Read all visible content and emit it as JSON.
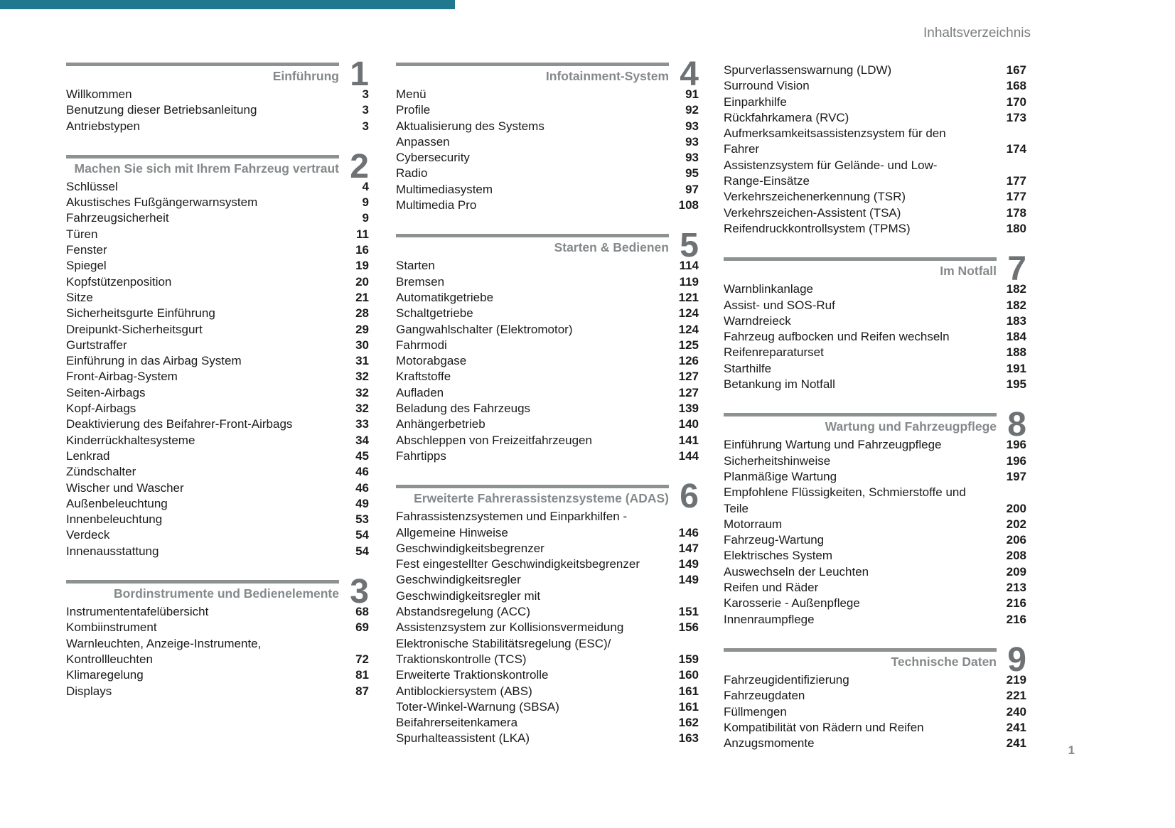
{
  "page": {
    "header_title": "Inhaltsverzeichnis",
    "footer_page_number": "1",
    "accent_color": "#20788f"
  },
  "columns": [
    [
      {
        "number": "1",
        "title": "Einführung",
        "items": [
          {
            "lines": [
              "Willkommen"
            ],
            "page": "3"
          },
          {
            "lines": [
              "Benutzung dieser Betriebsanleitung"
            ],
            "page": "3"
          },
          {
            "lines": [
              "Antriebstypen"
            ],
            "page": "3"
          }
        ]
      },
      {
        "number": "2",
        "title": "Machen Sie sich mit Ihrem Fahrzeug vertraut",
        "items": [
          {
            "lines": [
              "Schlüssel"
            ],
            "page": "4"
          },
          {
            "lines": [
              "Akustisches Fußgängerwarnsystem"
            ],
            "page": "9"
          },
          {
            "lines": [
              "Fahrzeugsicherheit"
            ],
            "page": "9"
          },
          {
            "lines": [
              "Türen"
            ],
            "page": "11"
          },
          {
            "lines": [
              "Fenster"
            ],
            "page": "16"
          },
          {
            "lines": [
              "Spiegel"
            ],
            "page": "19"
          },
          {
            "lines": [
              "Kopfstützenposition"
            ],
            "page": "20"
          },
          {
            "lines": [
              "Sitze"
            ],
            "page": "21"
          },
          {
            "lines": [
              "Sicherheitsgurte Einführung"
            ],
            "page": "28"
          },
          {
            "lines": [
              "Dreipunkt-Sicherheitsgurt"
            ],
            "page": "29"
          },
          {
            "lines": [
              "Gurtstraffer"
            ],
            "page": "30"
          },
          {
            "lines": [
              "Einführung in das Airbag System"
            ],
            "page": "31"
          },
          {
            "lines": [
              "Front-Airbag-System"
            ],
            "page": "32"
          },
          {
            "lines": [
              "Seiten-Airbags"
            ],
            "page": "32"
          },
          {
            "lines": [
              "Kopf-Airbags"
            ],
            "page": "32"
          },
          {
            "lines": [
              "Deaktivierung des Beifahrer-Front-Airbags"
            ],
            "page": "33"
          },
          {
            "lines": [
              "Kinderrückhaltesysteme"
            ],
            "page": "34"
          },
          {
            "lines": [
              "Lenkrad"
            ],
            "page": "45"
          },
          {
            "lines": [
              "Zündschalter"
            ],
            "page": "46"
          },
          {
            "lines": [
              "Wischer und Wascher"
            ],
            "page": "46"
          },
          {
            "lines": [
              "Außenbeleuchtung"
            ],
            "page": "49"
          },
          {
            "lines": [
              "Innenbeleuchtung"
            ],
            "page": "53"
          },
          {
            "lines": [
              "Verdeck"
            ],
            "page": "54"
          },
          {
            "lines": [
              "Innenausstattung"
            ],
            "page": "54"
          }
        ]
      },
      {
        "number": "3",
        "title": "Bordinstrumente und Bedienelemente",
        "items": [
          {
            "lines": [
              "Instrumententafelübersicht"
            ],
            "page": "68"
          },
          {
            "lines": [
              "Kombiinstrument"
            ],
            "page": "69"
          },
          {
            "lines": [
              "Warnleuchten, Anzeige-Instrumente,",
              "Kontrollleuchten"
            ],
            "page": "72"
          },
          {
            "lines": [
              "Klimaregelung"
            ],
            "page": "81"
          },
          {
            "lines": [
              "Displays"
            ],
            "page": "87"
          }
        ]
      }
    ],
    [
      {
        "number": "4",
        "title": "Infotainment-System",
        "items": [
          {
            "lines": [
              "Menü"
            ],
            "page": "91"
          },
          {
            "lines": [
              "Profile"
            ],
            "page": "92"
          },
          {
            "lines": [
              "Aktualisierung des Systems"
            ],
            "page": "93"
          },
          {
            "lines": [
              "Anpassen"
            ],
            "page": "93"
          },
          {
            "lines": [
              "Cybersecurity"
            ],
            "page": "93"
          },
          {
            "lines": [
              "Radio"
            ],
            "page": "95"
          },
          {
            "lines": [
              "Multimediasystem"
            ],
            "page": "97"
          },
          {
            "lines": [
              "Multimedia Pro"
            ],
            "page": "108"
          }
        ]
      },
      {
        "number": "5",
        "title": "Starten & Bedienen",
        "items": [
          {
            "lines": [
              "Starten"
            ],
            "page": "114"
          },
          {
            "lines": [
              "Bremsen"
            ],
            "page": "119"
          },
          {
            "lines": [
              "Automatikgetriebe"
            ],
            "page": "121"
          },
          {
            "lines": [
              "Schaltgetriebe"
            ],
            "page": "124"
          },
          {
            "lines": [
              "Gangwahlschalter (Elektromotor)"
            ],
            "page": "124"
          },
          {
            "lines": [
              "Fahrmodi"
            ],
            "page": "125"
          },
          {
            "lines": [
              "Motorabgase"
            ],
            "page": "126"
          },
          {
            "lines": [
              "Kraftstoffe"
            ],
            "page": "127"
          },
          {
            "lines": [
              "Aufladen"
            ],
            "page": "127"
          },
          {
            "lines": [
              "Beladung des Fahrzeugs"
            ],
            "page": "139"
          },
          {
            "lines": [
              "Anhängerbetrieb"
            ],
            "page": "140"
          },
          {
            "lines": [
              "Abschleppen von Freizeitfahrzeugen"
            ],
            "page": "141"
          },
          {
            "lines": [
              "Fahrtipps"
            ],
            "page": "144"
          }
        ]
      },
      {
        "number": "6",
        "title": "Erweiterte Fahrerassistenzsysteme (ADAS)",
        "items": [
          {
            "lines": [
              "Fahrassistenzsystemen und Einparkhilfen -",
              "Allgemeine Hinweise"
            ],
            "page": "146"
          },
          {
            "lines": [
              "Geschwindigkeitsbegrenzer"
            ],
            "page": "147"
          },
          {
            "lines": [
              "Fest eingestellter Geschwindigkeitsbegrenzer"
            ],
            "page": "149"
          },
          {
            "lines": [
              "Geschwindigkeitsregler"
            ],
            "page": "149"
          },
          {
            "lines": [
              "Geschwindigkeitsregler mit",
              "Abstandsregelung (ACC)"
            ],
            "page": "151"
          },
          {
            "lines": [
              "Assistenzsystem zur Kollisionsvermeidung"
            ],
            "page": "156"
          },
          {
            "lines": [
              "Elektronische Stabilitätsregelung (ESC)/",
              "Traktionskontrolle (TCS)"
            ],
            "page": "159"
          },
          {
            "lines": [
              "Erweiterte Traktionskontrolle"
            ],
            "page": "160"
          },
          {
            "lines": [
              "Antiblockiersystem (ABS)"
            ],
            "page": "161"
          },
          {
            "lines": [
              "Toter-Winkel-Warnung (SBSA)"
            ],
            "page": "161"
          },
          {
            "lines": [
              "Beifahrerseitenkamera"
            ],
            "page": "162"
          },
          {
            "lines": [
              "Spurhalteassistent (LKA)"
            ],
            "page": "163"
          }
        ]
      }
    ],
    [
      {
        "continuation": true,
        "items": [
          {
            "lines": [
              "Spurverlassenswarnung (LDW)"
            ],
            "page": "167"
          },
          {
            "lines": [
              "Surround Vision"
            ],
            "page": "168"
          },
          {
            "lines": [
              "Einparkhilfe"
            ],
            "page": "170"
          },
          {
            "lines": [
              "Rückfahrkamera (RVC)"
            ],
            "page": "173"
          },
          {
            "lines": [
              "Aufmerksamkeitsassistenzsystem für den",
              "Fahrer"
            ],
            "page": "174"
          },
          {
            "lines": [
              "Assistenzsystem für Gelände- und Low-",
              "Range-Einsätze"
            ],
            "page": "177"
          },
          {
            "lines": [
              "Verkehrszeichenerkennung (TSR)"
            ],
            "page": "177"
          },
          {
            "lines": [
              "Verkehrszeichen-Assistent (TSA)"
            ],
            "page": "178"
          },
          {
            "lines": [
              "Reifendruckkontrollsystem (TPMS)"
            ],
            "page": "180"
          }
        ]
      },
      {
        "number": "7",
        "title": "Im Notfall",
        "items": [
          {
            "lines": [
              "Warnblinkanlage"
            ],
            "page": "182"
          },
          {
            "lines": [
              "Assist- und SOS-Ruf"
            ],
            "page": "182"
          },
          {
            "lines": [
              "Warndreieck"
            ],
            "page": "183"
          },
          {
            "lines": [
              "Fahrzeug aufbocken und Reifen wechseln"
            ],
            "page": "184"
          },
          {
            "lines": [
              "Reifenreparaturset"
            ],
            "page": "188"
          },
          {
            "lines": [
              "Starthilfe"
            ],
            "page": "191"
          },
          {
            "lines": [
              "Betankung im Notfall"
            ],
            "page": "195"
          }
        ]
      },
      {
        "number": "8",
        "title": "Wartung und Fahrzeugpflege",
        "items": [
          {
            "lines": [
              "Einführung Wartung und Fahrzeugpflege"
            ],
            "page": "196"
          },
          {
            "lines": [
              "Sicherheitshinweise"
            ],
            "page": "196"
          },
          {
            "lines": [
              "Planmäßige Wartung"
            ],
            "page": "197"
          },
          {
            "lines": [
              "Empfohlene Flüssigkeiten, Schmierstoffe und",
              "Teile"
            ],
            "page": "200"
          },
          {
            "lines": [
              "Motorraum"
            ],
            "page": "202"
          },
          {
            "lines": [
              "Fahrzeug-Wartung"
            ],
            "page": "206"
          },
          {
            "lines": [
              "Elektrisches System"
            ],
            "page": "208"
          },
          {
            "lines": [
              "Auswechseln der Leuchten"
            ],
            "page": "209"
          },
          {
            "lines": [
              "Reifen und Räder"
            ],
            "page": "213"
          },
          {
            "lines": [
              "Karosserie - Außenpflege"
            ],
            "page": "216"
          },
          {
            "lines": [
              "Innenraumpflege"
            ],
            "page": "216"
          }
        ]
      },
      {
        "number": "9",
        "title": "Technische Daten",
        "items": [
          {
            "lines": [
              "Fahrzeugidentifizierung"
            ],
            "page": "219"
          },
          {
            "lines": [
              "Fahrzeugdaten"
            ],
            "page": "221"
          },
          {
            "lines": [
              "Füllmengen"
            ],
            "page": "240"
          },
          {
            "lines": [
              "Kompatibilität von Rädern und Reifen"
            ],
            "page": "241"
          },
          {
            "lines": [
              "Anzugsmomente"
            ],
            "page": "241"
          }
        ]
      }
    ]
  ]
}
